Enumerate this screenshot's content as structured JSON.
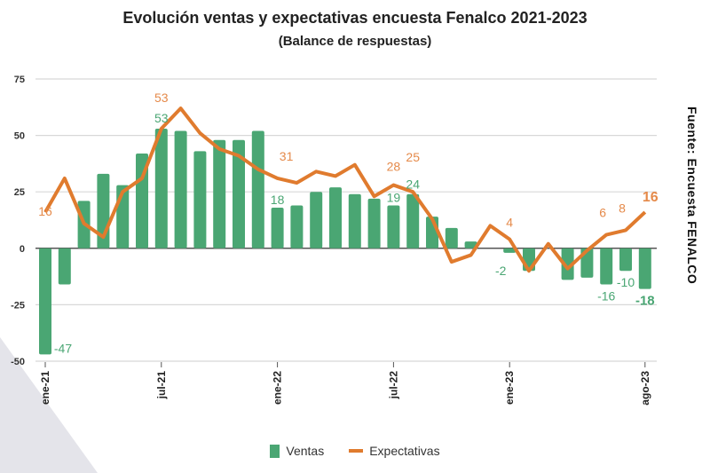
{
  "chart_data": {
    "type": "bar",
    "title": "Evolución ventas y expectativas encuesta Fenalco 2021-2023",
    "subtitle": "(Balance de respuestas)",
    "source": "Fuente: Encuesta FENALCO",
    "ylim": [
      -50,
      75
    ],
    "yticks": [
      75,
      50,
      25,
      0,
      -25,
      -50
    ],
    "grid": true,
    "legend_placement": "bottom",
    "categories": [
      "ene-21",
      "feb-21",
      "mar-21",
      "abr-21",
      "may-21",
      "jun-21",
      "jul-21",
      "ago-21",
      "sep-21",
      "oct-21",
      "nov-21",
      "dic-21",
      "ene-22",
      "feb-22",
      "mar-22",
      "abr-22",
      "may-22",
      "jun-22",
      "jul-22",
      "ago-22",
      "sep-22",
      "oct-22",
      "nov-22",
      "dic-22",
      "ene-23",
      "feb-23",
      "mar-23",
      "abr-23",
      "may-23",
      "jun-23",
      "jul-23",
      "ago-23"
    ],
    "xtick_labels": [
      {
        "index": 0,
        "label": "ene-21"
      },
      {
        "index": 6,
        "label": "jul-21"
      },
      {
        "index": 12,
        "label": "ene-22"
      },
      {
        "index": 18,
        "label": "jul-22"
      },
      {
        "index": 24,
        "label": "ene-23"
      },
      {
        "index": 31,
        "label": "ago-23"
      }
    ],
    "series": [
      {
        "name": "Ventas",
        "type": "bar",
        "color": "#4aa673",
        "values": [
          -47,
          -16,
          21,
          33,
          28,
          42,
          53,
          52,
          43,
          48,
          48,
          52,
          18,
          19,
          25,
          27,
          24,
          22,
          19,
          24,
          14,
          9,
          3,
          0,
          -2,
          -10,
          0,
          -14,
          -13,
          -16,
          -10,
          -18
        ],
        "labels": [
          {
            "index": 0,
            "text": "-47"
          },
          {
            "index": 6,
            "text": "53"
          },
          {
            "index": 12,
            "text": "18"
          },
          {
            "index": 18,
            "text": "19"
          },
          {
            "index": 19,
            "text": "24"
          },
          {
            "index": 24,
            "text": "-2"
          },
          {
            "index": 29,
            "text": "-16"
          },
          {
            "index": 30,
            "text": "-10"
          },
          {
            "index": 31,
            "text": "-18",
            "bold": true
          }
        ]
      },
      {
        "name": "Expectativas",
        "type": "line",
        "color": "#e07b2e",
        "values": [
          16,
          31,
          11,
          5,
          25,
          31,
          53,
          62,
          51,
          44,
          41,
          35,
          31,
          29,
          34,
          32,
          37,
          23,
          28,
          25,
          13,
          -6,
          -3,
          10,
          4,
          -10,
          2,
          -9,
          -1,
          6,
          8,
          16
        ],
        "labels": [
          {
            "index": 0,
            "text": "16"
          },
          {
            "index": 6,
            "text": "53"
          },
          {
            "index": 12,
            "text": "31"
          },
          {
            "index": 18,
            "text": "28"
          },
          {
            "index": 19,
            "text": "25"
          },
          {
            "index": 24,
            "text": "4"
          },
          {
            "index": 29,
            "text": "6"
          },
          {
            "index": 30,
            "text": "8"
          },
          {
            "index": 31,
            "text": "16",
            "bold": true
          }
        ]
      }
    ]
  }
}
